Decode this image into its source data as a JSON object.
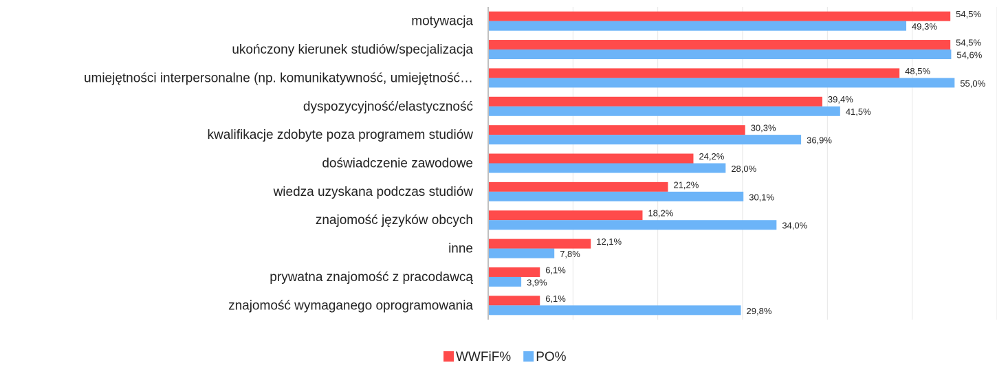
{
  "chart_data": {
    "type": "hbar",
    "categories": [
      "motywacja",
      "ukończony kierunek studiów/specjalizacja",
      "umiejętności interpersonalne (np. komunikatywność, umiejętność…",
      "dyspozycyjność/elastyczność",
      "kwalifikacje zdobyte poza programem studiów",
      "doświadczenie zawodowe",
      "wiedza uzyskana podczas studiów",
      "znajomość języków obcych",
      "inne",
      "prywatna znajomość z pracodawcą",
      "znajomość wymaganego oprogramowania"
    ],
    "series": [
      {
        "name": "WWFiF%",
        "color": "#ff4b4b",
        "values": [
          54.5,
          54.5,
          48.5,
          39.4,
          30.3,
          24.2,
          21.2,
          18.2,
          12.1,
          6.1,
          6.1
        ],
        "value_labels": [
          "54,5%",
          "54,5%",
          "48,5%",
          "39,4%",
          "30,3%",
          "24,2%",
          "21,2%",
          "18,2%",
          "12,1%",
          "6,1%",
          "6,1%"
        ]
      },
      {
        "name": "PO%",
        "color": "#6cb4f8",
        "values": [
          49.3,
          54.6,
          55.0,
          41.5,
          36.9,
          28.0,
          30.1,
          34.0,
          7.8,
          3.9,
          29.8
        ],
        "value_labels": [
          "49,3%",
          "54,6%",
          "55,0%",
          "41,5%",
          "36,9%",
          "28,0%",
          "30,1%",
          "34,0%",
          "7,8%",
          "3,9%",
          "29,8%"
        ]
      }
    ],
    "xlim": [
      0,
      60
    ],
    "xticks": [
      0,
      10,
      20,
      30,
      40,
      50,
      60
    ],
    "grid": true,
    "legend": "bottom"
  }
}
